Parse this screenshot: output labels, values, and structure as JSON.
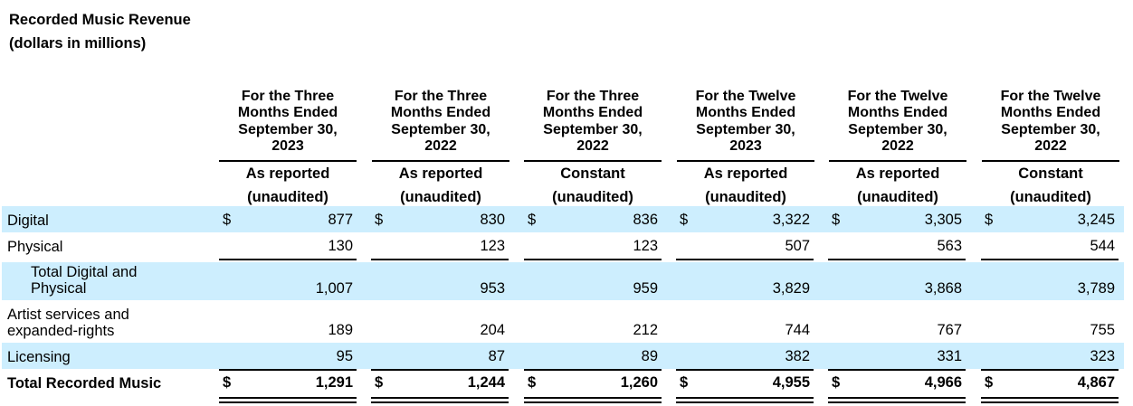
{
  "title": {
    "line1": "Recorded Music Revenue",
    "line2": "(dollars in millions)"
  },
  "columns": [
    {
      "header": [
        "For the Three",
        "Months Ended",
        "September 30,",
        "2023"
      ],
      "basis": "As reported",
      "audit": "(unaudited)"
    },
    {
      "header": [
        "For the Three",
        "Months Ended",
        "September 30,",
        "2022"
      ],
      "basis": "As reported",
      "audit": "(unaudited)"
    },
    {
      "header": [
        "For the Three",
        "Months Ended",
        "September 30,",
        "2022"
      ],
      "basis": "Constant",
      "audit": "(unaudited)"
    },
    {
      "header": [
        "For the Twelve",
        "Months Ended",
        "September 30,",
        "2023"
      ],
      "basis": "As reported",
      "audit": "(unaudited)"
    },
    {
      "header": [
        "For the Twelve",
        "Months Ended",
        "September 30,",
        "2022"
      ],
      "basis": "As reported",
      "audit": "(unaudited)"
    },
    {
      "header": [
        "For the Twelve",
        "Months Ended",
        "September 30,",
        "2022"
      ],
      "basis": "Constant",
      "audit": "(unaudited)"
    }
  ],
  "rows": [
    {
      "label": [
        "Digital"
      ],
      "currency": "$",
      "values": [
        "877",
        "830",
        "836",
        "3,322",
        "3,305",
        "3,245"
      ]
    },
    {
      "label": [
        "Physical"
      ],
      "currency": "",
      "values": [
        "130",
        "123",
        "123",
        "507",
        "563",
        "544"
      ]
    },
    {
      "label": [
        "Total Digital and",
        "Physical"
      ],
      "currency": "",
      "values": [
        "1,007",
        "953",
        "959",
        "3,829",
        "3,868",
        "3,789"
      ]
    },
    {
      "label": [
        "Artist services and",
        "expanded-rights"
      ],
      "currency": "",
      "values": [
        "189",
        "204",
        "212",
        "744",
        "767",
        "755"
      ]
    },
    {
      "label": [
        "Licensing"
      ],
      "currency": "",
      "values": [
        "95",
        "87",
        "89",
        "382",
        "331",
        "323"
      ]
    },
    {
      "label": [
        "Total Recorded Music"
      ],
      "currency": "$",
      "values": [
        "1,291",
        "1,244",
        "1,260",
        "4,955",
        "4,966",
        "4,867"
      ]
    }
  ]
}
